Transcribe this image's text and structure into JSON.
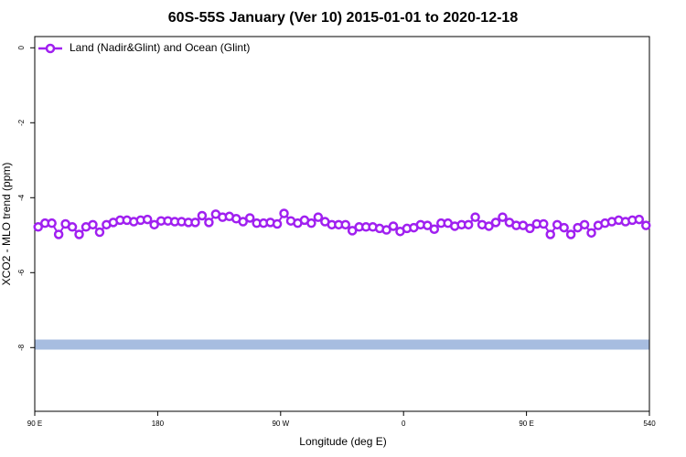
{
  "chart_data": {
    "type": "line",
    "title": "60S-55S January (Ver 10)   2015-01-01 to 2020-12-18",
    "xlabel": "Longitude (deg E)",
    "ylabel": "XCO2 - MLO trend (ppm)",
    "x": [
      92.5,
      97.5,
      102.5,
      107.5,
      112.5,
      117.5,
      122.5,
      127.5,
      132.5,
      137.5,
      142.5,
      147.5,
      152.5,
      157.5,
      162.5,
      167.5,
      172.5,
      177.5,
      182.5,
      187.5,
      192.5,
      197.5,
      202.5,
      207.5,
      212.5,
      217.5,
      222.5,
      227.5,
      232.5,
      237.5,
      242.5,
      247.5,
      252.5,
      257.5,
      262.5,
      267.5,
      272.5,
      277.5,
      282.5,
      287.5,
      292.5,
      297.5,
      302.5,
      307.5,
      312.5,
      317.5,
      322.5,
      327.5,
      332.5,
      337.5,
      342.5,
      347.5,
      352.5,
      357.5,
      362.5,
      367.5,
      372.5,
      377.5,
      382.5,
      387.5,
      392.5,
      397.5,
      402.5,
      407.5,
      412.5,
      417.5,
      422.5,
      427.5,
      432.5,
      437.5,
      442.5,
      447.5,
      452.5,
      457.5,
      462.5,
      467.5,
      472.5,
      477.5,
      482.5,
      487.5,
      492.5,
      497.5,
      502.5,
      507.5,
      512.5,
      517.5,
      522.5,
      527.5,
      532.5,
      537.5
    ],
    "series": [
      {
        "name": "Land (Nadir&Glint) and Ocean (Glint)",
        "color": "#a020f0",
        "values": [
          -4.78,
          -4.68,
          -4.68,
          -4.98,
          -4.7,
          -4.78,
          -4.98,
          -4.78,
          -4.72,
          -4.92,
          -4.72,
          -4.66,
          -4.6,
          -4.6,
          -4.64,
          -4.6,
          -4.58,
          -4.72,
          -4.62,
          -4.62,
          -4.64,
          -4.64,
          -4.66,
          -4.66,
          -4.48,
          -4.66,
          -4.44,
          -4.52,
          -4.5,
          -4.56,
          -4.64,
          -4.54,
          -4.68,
          -4.68,
          -4.66,
          -4.7,
          -4.42,
          -4.62,
          -4.68,
          -4.6,
          -4.68,
          -4.52,
          -4.64,
          -4.72,
          -4.72,
          -4.72,
          -4.88,
          -4.78,
          -4.78,
          -4.78,
          -4.82,
          -4.86,
          -4.76,
          -4.9,
          -4.82,
          -4.8,
          -4.72,
          -4.74,
          -4.84,
          -4.68,
          -4.68,
          -4.76,
          -4.72,
          -4.72,
          -4.52,
          -4.72,
          -4.76,
          -4.66,
          -4.52,
          -4.66,
          -4.74,
          -4.74,
          -4.82,
          -4.7,
          -4.7,
          -4.98,
          -4.72,
          -4.8,
          -4.98,
          -4.8,
          -4.72,
          -4.94,
          -4.74,
          -4.68,
          -4.64,
          -4.6,
          -4.64,
          -4.6,
          -4.58,
          -4.74
        ]
      }
    ],
    "reference_band": {
      "value": -7.92,
      "color": "#a7bde0"
    },
    "xlim": [
      90,
      540
    ],
    "xticks": [
      {
        "value": 90,
        "label": "90 E"
      },
      180,
      {
        "value": 270,
        "label": "90 W"
      },
      {
        "value": 360,
        "label": "0"
      },
      {
        "value": 450,
        "label": "90 E"
      },
      540
    ],
    "ylim": [
      -9.7,
      0.3
    ],
    "yticks": [
      0,
      -2,
      -4,
      -6,
      -8
    ],
    "legend": "top-left"
  }
}
